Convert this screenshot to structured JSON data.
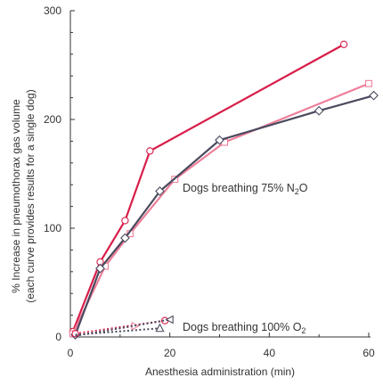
{
  "chart_data": {
    "type": "line",
    "ylabel": "% Increase in pneumothorax gas volume",
    "ylabel_note": "(each curve provides results for a single dog)",
    "xlabel": "Anesthesia administration (min)",
    "xlim": [
      0,
      60
    ],
    "ylim": [
      0,
      300
    ],
    "xticks": [
      0,
      20,
      40,
      60
    ],
    "yticks": [
      0,
      100,
      200,
      300
    ],
    "grid": false,
    "legend": "none",
    "annotations": [
      {
        "text": "Dogs breathing 75% N",
        "subscript": "2",
        "suffix": "O",
        "group": "n2o"
      },
      {
        "text": "Dogs breathing 100% O",
        "subscript": "2",
        "suffix": "",
        "group": "o2"
      }
    ],
    "series": [
      {
        "group": "n2o",
        "marker": "circle",
        "color": "#d81e4a",
        "line_style": "solid",
        "x": [
          0.5,
          6,
          11,
          16,
          55
        ],
        "y": [
          5,
          69,
          107,
          171,
          269
        ]
      },
      {
        "group": "n2o",
        "marker": "square",
        "color": "#ee7f9a",
        "line_style": "solid",
        "x": [
          0.5,
          7,
          12,
          21,
          31,
          60
        ],
        "y": [
          3,
          65,
          95,
          145,
          179,
          233
        ]
      },
      {
        "group": "n2o",
        "marker": "diamond",
        "color": "#4a4a5e",
        "line_style": "solid",
        "x": [
          1,
          6,
          11,
          18,
          30,
          50,
          61
        ],
        "y": [
          2,
          63,
          91,
          134,
          181,
          208,
          222
        ]
      },
      {
        "group": "o2",
        "marker": "circle",
        "color": "#d81e4a",
        "line_style": "dotted",
        "x": [
          1,
          19
        ],
        "y": [
          3,
          15
        ]
      },
      {
        "group": "o2",
        "marker": "triangle-right",
        "color": "#ee7f9a",
        "line_style": "dotted",
        "x": [
          1,
          13
        ],
        "y": [
          2,
          10
        ]
      },
      {
        "group": "o2",
        "marker": "triangle-left",
        "color": "#4a4a5e",
        "line_style": "dotted",
        "x": [
          1,
          20
        ],
        "y": [
          1,
          16
        ]
      },
      {
        "group": "o2",
        "marker": "triangle-up",
        "color": "#4a4a5e",
        "line_style": "dotted",
        "x": [
          1,
          18
        ],
        "y": [
          2,
          8
        ]
      }
    ]
  }
}
